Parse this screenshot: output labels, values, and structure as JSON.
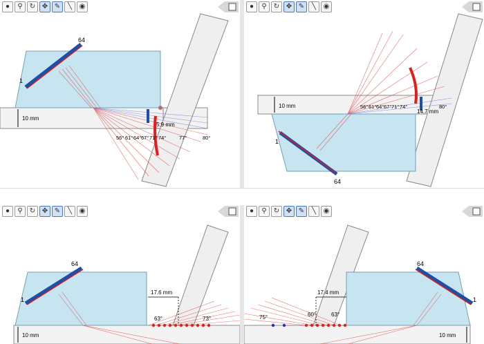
{
  "toolbar": {
    "icons": [
      "bulb-icon",
      "zoom-icon",
      "rotate-icon",
      "move-icon",
      "probe-icon",
      "eraser-icon",
      "eye-icon"
    ]
  },
  "colors": {
    "wedge": "#c8e6f2",
    "part": "#f2f2f2",
    "beam": "#e03030",
    "shear": "#6b6bd6",
    "transducer_red": "#d81e1e",
    "transducer_blue": "#1b4fa8"
  },
  "panels": [
    {
      "id": "top-left",
      "thickness": "10 mm",
      "element_last": "64",
      "element_first": "1",
      "distance": "5.9 mm",
      "angles": [
        "56°",
        "61°",
        "64°",
        "67°",
        "71°",
        "74°",
        "77°",
        "80°"
      ]
    },
    {
      "id": "top-right",
      "thickness": "10 mm",
      "element_last": "64",
      "element_first": "1",
      "distance": "14.7 mm",
      "angles": [
        "56°",
        "61°",
        "64°",
        "67°",
        "71°",
        "74°",
        "80°"
      ]
    },
    {
      "id": "bottom-left",
      "thickness": "10 mm",
      "element_last": "64",
      "element_first": "1",
      "distance": "17.6 mm",
      "angles": [
        "63°",
        "73°"
      ]
    },
    {
      "id": "bottom-right",
      "thickness": "10 mm",
      "element_last": "64",
      "element_first": "1",
      "distance": "17.4 mm",
      "angles": [
        "75°",
        "60°",
        "63°"
      ]
    }
  ]
}
